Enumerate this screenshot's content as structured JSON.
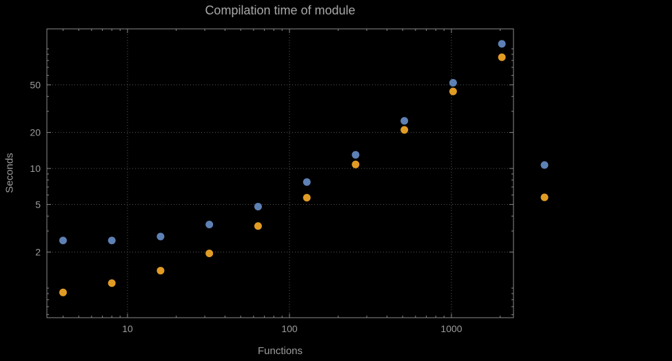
{
  "chart_data": {
    "type": "scatter",
    "title": "Compilation time of module",
    "xlabel": "Functions",
    "ylabel": "Seconds",
    "x_scale": "log",
    "y_scale": "log",
    "x_range": [
      3.2,
      2400
    ],
    "y_range": [
      0.57,
      145
    ],
    "x_ticks": [
      10,
      100,
      1000
    ],
    "y_ticks": [
      2,
      5,
      10,
      20,
      50
    ],
    "grid": "dotted",
    "legend_position": "right-outside",
    "x": [
      4,
      8,
      16,
      32,
      64,
      128,
      256,
      512,
      1024,
      2048
    ],
    "series": [
      {
        "color": "#5e81b5",
        "marker": "circle",
        "values": [
          2.5,
          2.5,
          2.7,
          3.4,
          4.8,
          7.7,
          13,
          25,
          52,
          110
        ]
      },
      {
        "color": "#e19c24",
        "marker": "circle",
        "values": [
          0.92,
          1.1,
          1.4,
          1.95,
          3.3,
          5.7,
          10.8,
          21,
          44,
          85
        ]
      }
    ]
  },
  "colors": {
    "background": "#000000",
    "frame": "#8c8c8c",
    "grid": "#5c5c5c",
    "tick_text": "#9c9c9c",
    "title_text": "#a9a9a9"
  }
}
